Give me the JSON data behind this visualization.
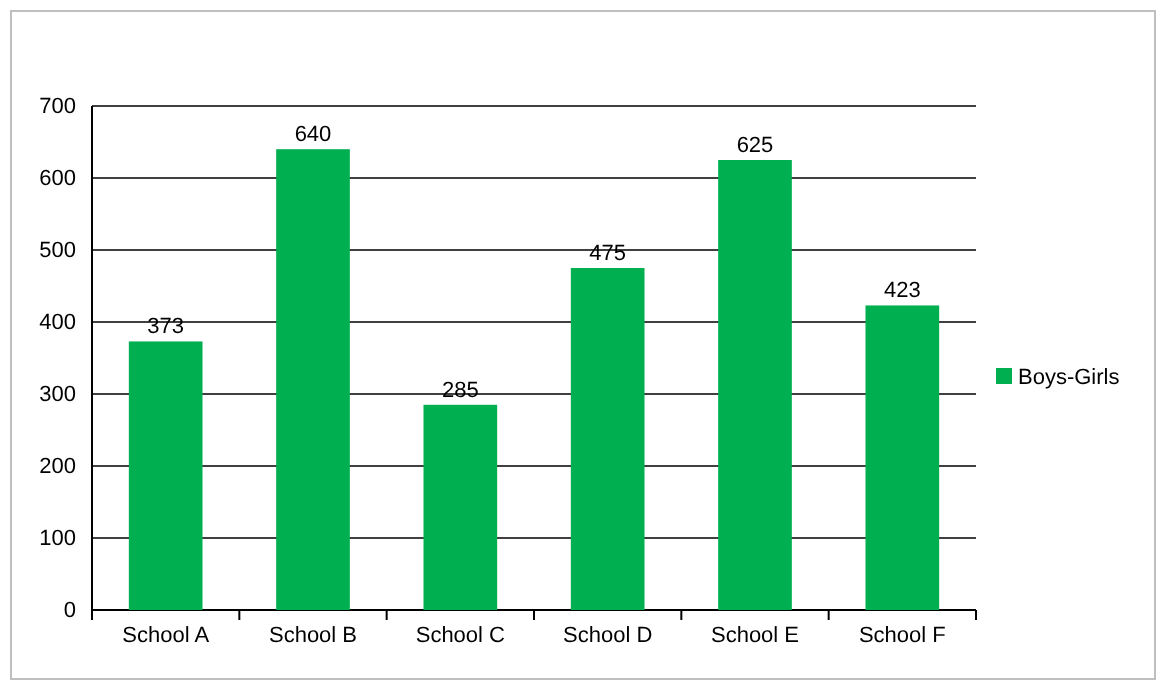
{
  "chart_data": {
    "type": "bar",
    "categories": [
      "School A",
      "School B",
      "School C",
      "School D",
      "School E",
      "School F"
    ],
    "series": [
      {
        "name": "Boys-Girls",
        "color": "#00b050",
        "values": [
          373,
          640,
          285,
          475,
          625,
          423
        ]
      }
    ],
    "ylim": [
      0,
      700
    ],
    "yticks": [
      0,
      100,
      200,
      300,
      400,
      500,
      600,
      700
    ],
    "grid": "y",
    "legend": "right",
    "data_labels": true
  }
}
